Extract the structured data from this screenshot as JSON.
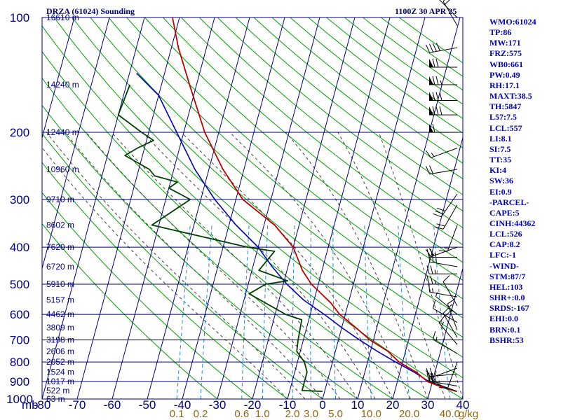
{
  "header": {
    "title": "DRZA (61024) Sounding",
    "datetime": "1100Z 30 APR 25"
  },
  "indices": [
    "WMO:61024",
    "TP:86",
    "MW:171",
    "FRZ:575",
    "WB0:661",
    "PW:0.49",
    "RH:17.1",
    "MAXT:38.5",
    "TH:5847",
    "L57:7.5",
    "LCL:557",
    "LI:8.1",
    "SI:7.5",
    "TT:35",
    "KI:4",
    "SW:36",
    "EI:0.9",
    "-PARCEL-",
    "CAPE:5",
    "CINH:44362",
    "LCL:526",
    "CAP:8.2",
    "LFC:-1",
    "-WIND-",
    "STM:87/7",
    "HEL:103",
    "SHR+:0.0",
    "SRDS:-167",
    "EHI:0.0",
    "BRN:0.1",
    "BSHR:53"
  ],
  "colors": {
    "temperature": "#c00000",
    "dewpoint": "#004000",
    "parcel": "#0000c0",
    "grid": "#000080",
    "dry_adiabat": "#00a000",
    "moist_adiabat": "#404040",
    "mixing_ratio": "#2090d0",
    "axis_label_temp": "#000080",
    "axis_label_mixing": "#8b6914"
  },
  "chart_data": {
    "type": "skew-t",
    "title": "DRZA (61024) Sounding",
    "pressure_axis": {
      "unit_label": "mb",
      "ticks": [
        100,
        200,
        300,
        400,
        500,
        600,
        700,
        800,
        900,
        1000
      ]
    },
    "temperature_axis": {
      "ticks": [
        -80,
        -70,
        -60,
        -50,
        -40,
        -30,
        -20,
        -10,
        0,
        10,
        20,
        30,
        40
      ]
    },
    "mixing_ratio_labels": [
      {
        "text": "0.1",
        "value": 0.1
      },
      {
        "text": "0.2",
        "value": 0.2
      },
      {
        "text": "0.6",
        "value": 0.6
      },
      {
        "text": "1.0",
        "value": 1.0
      },
      {
        "text": "2.0",
        "value": 2.0
      },
      {
        "text": "3.0",
        "value": 3.0
      },
      {
        "text": "5.0",
        "value": 5.0
      },
      {
        "text": "10.0",
        "value": 10.0
      },
      {
        "text": "20.0",
        "value": 20.0
      },
      {
        "text": "40.0",
        "value": 40.0
      }
    ],
    "mixing_ratio_unit": "g/kg",
    "heights": [
      {
        "text": "16610 m",
        "p": 100
      },
      {
        "text": "14240 m",
        "p": 150
      },
      {
        "text": "12440 m",
        "p": 200
      },
      {
        "text": "10960 m",
        "p": 250
      },
      {
        "text": "9710 m",
        "p": 300
      },
      {
        "text": "8602 m",
        "p": 350
      },
      {
        "text": "7620 m",
        "p": 400
      },
      {
        "text": "6720 m",
        "p": 450
      },
      {
        "text": "5910 m",
        "p": 500
      },
      {
        "text": "5157 m",
        "p": 550
      },
      {
        "text": "4462 m",
        "p": 600
      },
      {
        "text": "3809 m",
        "p": 650
      },
      {
        "text": "3198 m",
        "p": 700
      },
      {
        "text": "2606 m",
        "p": 750
      },
      {
        "text": "2052 m",
        "p": 800
      },
      {
        "text": "1524 m",
        "p": 850
      },
      {
        "text": "1017 m",
        "p": 900
      },
      {
        "text": "522 m",
        "p": 950
      },
      {
        "text": "63 m",
        "p": 1000
      }
    ],
    "surface_pressure": 955,
    "temperature": [
      [
        955,
        37.6
      ],
      [
        930,
        33
      ],
      [
        900,
        28.6
      ],
      [
        880,
        27
      ],
      [
        850,
        24.6
      ],
      [
        800,
        19
      ],
      [
        750,
        15
      ],
      [
        700,
        9
      ],
      [
        650,
        4
      ],
      [
        600,
        -1.6
      ],
      [
        560,
        -5
      ],
      [
        500,
        -12
      ],
      [
        460,
        -15.6
      ],
      [
        400,
        -20
      ],
      [
        350,
        -27
      ],
      [
        300,
        -38
      ],
      [
        250,
        -46
      ],
      [
        200,
        -54
      ],
      [
        150,
        -62
      ],
      [
        120,
        -68
      ],
      [
        100,
        -72
      ]
    ],
    "dewpoint": [
      [
        955,
        -0.6
      ],
      [
        950,
        -6.5
      ],
      [
        900,
        -6.5
      ],
      [
        850,
        -6.5
      ],
      [
        800,
        -8
      ],
      [
        750,
        -11
      ],
      [
        700,
        -11.5
      ],
      [
        620,
        -12
      ],
      [
        600,
        -17
      ],
      [
        530,
        -29
      ],
      [
        500,
        -25
      ],
      [
        490,
        -19
      ],
      [
        460,
        -28
      ],
      [
        410,
        -25
      ],
      [
        400,
        -33
      ],
      [
        350,
        -62
      ],
      [
        300,
        -53
      ],
      [
        280,
        -60
      ],
      [
        270,
        -58
      ],
      [
        260,
        -65
      ],
      [
        250,
        -67
      ],
      [
        230,
        -75
      ],
      [
        220,
        -72
      ],
      [
        210,
        -68
      ],
      [
        200,
        -72
      ],
      [
        180,
        -80
      ],
      [
        150,
        -79
      ]
    ],
    "parcel": [
      [
        955,
        37.6
      ],
      [
        900,
        29
      ],
      [
        850,
        24
      ],
      [
        800,
        18
      ],
      [
        750,
        12
      ],
      [
        700,
        6
      ],
      [
        650,
        0
      ],
      [
        600,
        -6
      ],
      [
        550,
        -13
      ],
      [
        500,
        -19
      ],
      [
        450,
        -24.5
      ],
      [
        400,
        -30
      ],
      [
        350,
        -38
      ],
      [
        300,
        -46
      ],
      [
        250,
        -54
      ],
      [
        200,
        -62
      ],
      [
        160,
        -70
      ],
      [
        140,
        -78
      ]
    ],
    "winds": [
      {
        "p": 955,
        "dir": 290,
        "spd": 15
      },
      {
        "p": 925,
        "dir": 280,
        "spd": 20
      },
      {
        "p": 900,
        "dir": 270,
        "spd": 25
      },
      {
        "p": 860,
        "dir": 265,
        "spd": 25
      },
      {
        "p": 830,
        "dir": 250,
        "spd": 10
      },
      {
        "p": 800,
        "dir": 200,
        "spd": 10
      },
      {
        "p": 760,
        "dir": 300,
        "spd": 15
      },
      {
        "p": 720,
        "dir": 320,
        "spd": 15
      },
      {
        "p": 690,
        "dir": 330,
        "spd": 20
      },
      {
        "p": 660,
        "dir": 340,
        "spd": 15
      },
      {
        "p": 630,
        "dir": 300,
        "spd": 10
      },
      {
        "p": 600,
        "dir": 310,
        "spd": 5
      },
      {
        "p": 570,
        "dir": 330,
        "spd": 10
      },
      {
        "p": 540,
        "dir": 280,
        "spd": 15
      },
      {
        "p": 500,
        "dir": 270,
        "spd": 25
      },
      {
        "p": 470,
        "dir": 270,
        "spd": 25
      },
      {
        "p": 450,
        "dir": 280,
        "spd": 25
      },
      {
        "p": 425,
        "dir": 270,
        "spd": 25
      },
      {
        "p": 400,
        "dir": 250,
        "spd": 20
      },
      {
        "p": 350,
        "dir": 200,
        "spd": 15
      },
      {
        "p": 310,
        "dir": 210,
        "spd": 20
      },
      {
        "p": 290,
        "dir": 215,
        "spd": 30
      },
      {
        "p": 250,
        "dir": 260,
        "spd": 20
      },
      {
        "p": 220,
        "dir": 250,
        "spd": 15
      },
      {
        "p": 200,
        "dir": 270,
        "spd": 60
      },
      {
        "p": 180,
        "dir": 270,
        "spd": 80
      },
      {
        "p": 165,
        "dir": 270,
        "spd": 80
      },
      {
        "p": 150,
        "dir": 270,
        "spd": 75
      },
      {
        "p": 135,
        "dir": 270,
        "spd": 70
      },
      {
        "p": 120,
        "dir": 260,
        "spd": 40
      },
      {
        "p": 105,
        "dir": 330,
        "spd": 20
      },
      {
        "p": 100,
        "dir": 315,
        "spd": 15
      }
    ]
  }
}
